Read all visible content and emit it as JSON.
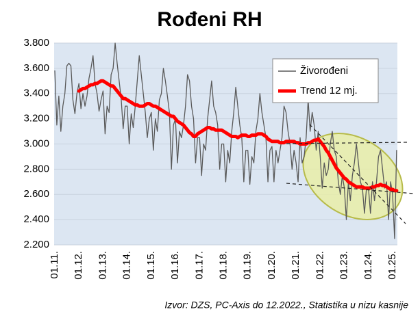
{
  "chart_data": {
    "type": "line",
    "title": "Rođeni RH",
    "source": "Izvor: DZS, PC-Axis do 12.2022., Statistika u nizu kasnije",
    "categories": [
      "01.11.",
      null,
      null,
      null,
      null,
      null,
      null,
      null,
      null,
      null,
      null,
      null,
      "01.12.",
      null,
      null,
      null,
      null,
      null,
      null,
      null,
      null,
      null,
      null,
      null,
      "01.13.",
      null,
      null,
      null,
      null,
      null,
      null,
      null,
      null,
      null,
      null,
      null,
      "01.14.",
      null,
      null,
      null,
      null,
      null,
      null,
      null,
      null,
      null,
      null,
      null,
      "01.15.",
      null,
      null,
      null,
      null,
      null,
      null,
      null,
      null,
      null,
      null,
      null,
      "01.16.",
      null,
      null,
      null,
      null,
      null,
      null,
      null,
      null,
      null,
      null,
      null,
      "01.17.",
      null,
      null,
      null,
      null,
      null,
      null,
      null,
      null,
      null,
      null,
      null,
      "01.18.",
      null,
      null,
      null,
      null,
      null,
      null,
      null,
      null,
      null,
      null,
      null,
      "01.19.",
      null,
      null,
      null,
      null,
      null,
      null,
      null,
      null,
      null,
      null,
      null,
      "01.20.",
      null,
      null,
      null,
      null,
      null,
      null,
      null,
      null,
      null,
      null,
      null,
      "01.21.",
      null,
      null,
      null,
      null,
      null,
      null,
      null,
      null,
      null,
      null,
      null,
      "01.22.",
      null,
      null,
      null,
      null,
      null,
      null,
      null,
      null,
      null,
      null,
      null,
      "01.23.",
      null,
      null,
      null,
      null,
      null,
      null,
      null,
      null,
      null,
      null,
      null,
      "01.24.",
      null,
      null,
      null,
      null,
      null,
      null,
      null,
      null,
      null,
      null,
      null,
      "01.25.",
      null,
      null
    ],
    "series": [
      {
        "name": "Živorođeni",
        "color": "#595959",
        "values": [
          3580,
          3150,
          3380,
          3100,
          3300,
          3400,
          3620,
          3640,
          3620,
          3350,
          3240,
          3400,
          3480,
          3280,
          3400,
          3300,
          3380,
          3520,
          3600,
          3700,
          3480,
          3400,
          3260,
          3350,
          3420,
          3080,
          3300,
          3250,
          3550,
          3600,
          3800,
          3640,
          3500,
          3360,
          3120,
          3300,
          3300,
          3000,
          3240,
          3130,
          3300,
          3500,
          3700,
          3550,
          3400,
          3250,
          3050,
          3200,
          3250,
          2950,
          3200,
          3100,
          3350,
          3400,
          3600,
          3500,
          3380,
          3250,
          2800,
          3150,
          3200,
          2850,
          3100,
          3050,
          3150,
          3300,
          3550,
          3500,
          3300,
          3200,
          2850,
          3050,
          3050,
          2750,
          3000,
          2950,
          3200,
          3350,
          3500,
          3300,
          3250,
          3150,
          2800,
          3000,
          3000,
          2700,
          2950,
          2850,
          3100,
          3250,
          3450,
          3300,
          3150,
          3050,
          2700,
          2950,
          2950,
          2680,
          2900,
          2850,
          3100,
          3200,
          3400,
          3250,
          3150,
          3050,
          2700,
          2950,
          2980,
          2700,
          2950,
          2850,
          2950,
          3050,
          3300,
          3250,
          3100,
          3000,
          2800,
          2950,
          2850,
          2700,
          3050,
          2850,
          2900,
          3050,
          3350,
          3100,
          3250,
          3150,
          2950,
          3100,
          2900,
          2650,
          2850,
          2750,
          2800,
          3000,
          3100,
          2950,
          2900,
          2700,
          2600,
          2750,
          2650,
          2400,
          2700,
          2550,
          2750,
          2850,
          3000,
          2850,
          2700,
          2650,
          2450,
          2650,
          2650,
          2450,
          2700,
          2550,
          2700,
          2900,
          2950,
          2800,
          2650,
          2700,
          2400,
          2700,
          2600,
          2250,
          2950
        ]
      },
      {
        "name": "Trend 12 mj.",
        "color": "#ff0000",
        "values": [
          null,
          null,
          null,
          null,
          null,
          null,
          null,
          null,
          null,
          null,
          null,
          null,
          3420,
          3430,
          3440,
          3440,
          3450,
          3460,
          3470,
          3470,
          3480,
          3480,
          3490,
          3500,
          3500,
          3490,
          3480,
          3470,
          3460,
          3460,
          3440,
          3420,
          3400,
          3380,
          3360,
          3360,
          3350,
          3340,
          3330,
          3320,
          3310,
          3310,
          3300,
          3300,
          3300,
          3310,
          3320,
          3320,
          3310,
          3300,
          3300,
          3290,
          3280,
          3270,
          3260,
          3250,
          3240,
          3230,
          3220,
          3220,
          3200,
          3180,
          3170,
          3160,
          3150,
          3130,
          3110,
          3090,
          3080,
          3060,
          3060,
          3080,
          3090,
          3100,
          3110,
          3120,
          3130,
          3130,
          3120,
          3120,
          3110,
          3110,
          3110,
          3110,
          3100,
          3090,
          3080,
          3070,
          3060,
          3060,
          3060,
          3050,
          3060,
          3070,
          3070,
          3070,
          3060,
          3060,
          3070,
          3070,
          3070,
          3080,
          3080,
          3080,
          3070,
          3060,
          3040,
          3030,
          3020,
          3020,
          3020,
          3020,
          3010,
          3010,
          3010,
          3020,
          3020,
          3020,
          3020,
          3020,
          3010,
          3010,
          3000,
          3000,
          3000,
          3000,
          3010,
          3010,
          3020,
          3030,
          3030,
          3040,
          3020,
          3000,
          2980,
          2950,
          2930,
          2900,
          2870,
          2840,
          2810,
          2790,
          2770,
          2750,
          2730,
          2720,
          2700,
          2690,
          2680,
          2670,
          2660,
          2660,
          2660,
          2660,
          2650,
          2650,
          2650,
          2650,
          2660,
          2660,
          2670,
          2670,
          2680,
          2670,
          2670,
          2660,
          2650,
          2640,
          2640,
          2630,
          2630
        ]
      }
    ],
    "ylim": [
      2200,
      3800
    ],
    "yticks": [
      {
        "value": 2200,
        "label": "2.200"
      },
      {
        "value": 2400,
        "label": "2.400"
      },
      {
        "value": 2600,
        "label": "2.600"
      },
      {
        "value": 2800,
        "label": "2.800"
      },
      {
        "value": 3000,
        "label": "3.000"
      },
      {
        "value": 3200,
        "label": "3.200"
      },
      {
        "value": 3400,
        "label": "3.400"
      },
      {
        "value": 3600,
        "label": "3.600"
      },
      {
        "value": 3800,
        "label": "3.800"
      }
    ],
    "grid": true,
    "legend": "top-right"
  }
}
